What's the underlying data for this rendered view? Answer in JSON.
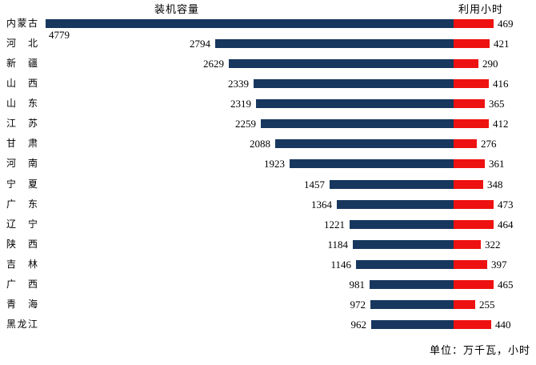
{
  "chart_data": {
    "type": "bar",
    "variant": "diverging-horizontal",
    "left_title": "装机容量",
    "right_title": "利用小时",
    "footer_note": "单位：万千瓦，小时",
    "legend_position": "column-headers",
    "grid": false,
    "categories": [
      "内蒙古",
      "河北",
      "新疆",
      "山西",
      "山东",
      "江苏",
      "甘肃",
      "河南",
      "宁夏",
      "广东",
      "辽宁",
      "陕西",
      "吉林",
      "广西",
      "青海",
      "黑龙江"
    ],
    "series": [
      {
        "name": "装机容量",
        "color": "#17375E",
        "direction": "left",
        "values": [
          4779,
          2794,
          2629,
          2339,
          2319,
          2259,
          2088,
          1923,
          1457,
          1364,
          1221,
          1184,
          1146,
          981,
          972,
          962
        ]
      },
      {
        "name": "利用小时",
        "color": "#EE1111",
        "direction": "right",
        "values": [
          469,
          421,
          290,
          416,
          365,
          412,
          276,
          361,
          348,
          473,
          464,
          322,
          397,
          465,
          255,
          440
        ]
      }
    ],
    "value_axis_visible": false,
    "xlim_capacity": [
      0,
      4779
    ],
    "xlim_hours": [
      0,
      473
    ]
  }
}
